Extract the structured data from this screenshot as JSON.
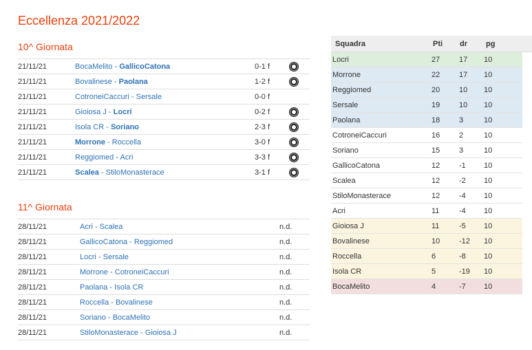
{
  "title": "Eccellenza 2021/2022",
  "rounds": [
    {
      "title": "10^ Giornata",
      "matches": [
        {
          "date": "21/11/21",
          "home": "BocaMelito",
          "away": "GallicoCatona",
          "winner": "away",
          "score": "0-1 f",
          "icon": "soccer-ball-icon"
        },
        {
          "date": "21/11/21",
          "home": "Bovalinese",
          "away": "Paolana",
          "winner": "away",
          "score": "1-2 f",
          "icon": "soccer-ball-icon"
        },
        {
          "date": "21/11/21",
          "home": "CotroneiCaccuri",
          "away": "Sersale",
          "winner": "",
          "score": "0-0 f",
          "icon": ""
        },
        {
          "date": "21/11/21",
          "home": "Gioiosa J",
          "away": "Locri",
          "winner": "away",
          "score": "0-2 f",
          "icon": "soccer-ball-icon"
        },
        {
          "date": "21/11/21",
          "home": "Isola CR",
          "away": "Soriano",
          "winner": "away",
          "score": "2-3 f",
          "icon": "soccer-ball-icon"
        },
        {
          "date": "21/11/21",
          "home": "Morrone",
          "away": "Roccella",
          "winner": "home",
          "score": "3-0 f",
          "icon": "soccer-ball-icon"
        },
        {
          "date": "21/11/21",
          "home": "Reggiomed",
          "away": "Acri",
          "winner": "",
          "score": "3-3 f",
          "icon": "soccer-ball-icon"
        },
        {
          "date": "21/11/21",
          "home": "Scalea",
          "away": "StiloMonasterace",
          "winner": "home",
          "score": "3-1 f",
          "icon": "soccer-ball-icon"
        }
      ]
    },
    {
      "title": "11^ Giornata",
      "matches": [
        {
          "date": "28/11/21",
          "home": "Acri",
          "away": "Scalea",
          "winner": "",
          "score": "n.d.",
          "icon": ""
        },
        {
          "date": "28/11/21",
          "home": "GallicoCatona",
          "away": "Reggiomed",
          "winner": "",
          "score": "n.d.",
          "icon": ""
        },
        {
          "date": "28/11/21",
          "home": "Locri",
          "away": "Sersale",
          "winner": "",
          "score": "n.d.",
          "icon": ""
        },
        {
          "date": "28/11/21",
          "home": "Morrone",
          "away": "CotroneiCaccuri",
          "winner": "",
          "score": "n.d.",
          "icon": ""
        },
        {
          "date": "28/11/21",
          "home": "Paolana",
          "away": "Isola CR",
          "winner": "",
          "score": "n.d.",
          "icon": ""
        },
        {
          "date": "28/11/21",
          "home": "Roccella",
          "away": "Bovalinese",
          "winner": "",
          "score": "n.d.",
          "icon": ""
        },
        {
          "date": "28/11/21",
          "home": "Soriano",
          "away": "BocaMelito",
          "winner": "",
          "score": "n.d.",
          "icon": ""
        },
        {
          "date": "28/11/21",
          "home": "StiloMonasterace",
          "away": "Gioiosa J",
          "winner": "",
          "score": "n.d.",
          "icon": ""
        }
      ]
    }
  ],
  "standings": {
    "headers": {
      "team": "Squadra",
      "points": "Pti",
      "goal_diff": "dr",
      "played": "pg"
    },
    "zone_colors": {
      "green": "#ddeedd",
      "blue": "#dde9f3",
      "yellow": "#fbf5e0",
      "red": "#f2dede"
    },
    "rows": [
      {
        "team": "Locri",
        "points": "27",
        "goal_diff": "17",
        "played": "10",
        "zone": "green"
      },
      {
        "team": "Morrone",
        "points": "22",
        "goal_diff": "17",
        "played": "10",
        "zone": "blue"
      },
      {
        "team": "Reggiomed",
        "points": "20",
        "goal_diff": "10",
        "played": "10",
        "zone": "blue"
      },
      {
        "team": "Sersale",
        "points": "19",
        "goal_diff": "10",
        "played": "10",
        "zone": "blue"
      },
      {
        "team": "Paolana",
        "points": "18",
        "goal_diff": "3",
        "played": "10",
        "zone": "blue"
      },
      {
        "team": "CotroneiCaccuri",
        "points": "16",
        "goal_diff": "2",
        "played": "10",
        "zone": "none"
      },
      {
        "team": "Soriano",
        "points": "15",
        "goal_diff": "3",
        "played": "10",
        "zone": "none"
      },
      {
        "team": "GallicoCatona",
        "points": "12",
        "goal_diff": "-1",
        "played": "10",
        "zone": "none"
      },
      {
        "team": "Scalea",
        "points": "12",
        "goal_diff": "-2",
        "played": "10",
        "zone": "none"
      },
      {
        "team": "StiloMonasterace",
        "points": "12",
        "goal_diff": "-4",
        "played": "10",
        "zone": "none"
      },
      {
        "team": "Acri",
        "points": "11",
        "goal_diff": "-4",
        "played": "10",
        "zone": "none"
      },
      {
        "team": "Gioiosa J",
        "points": "11",
        "goal_diff": "-5",
        "played": "10",
        "zone": "yellow"
      },
      {
        "team": "Bovalinese",
        "points": "10",
        "goal_diff": "-12",
        "played": "10",
        "zone": "yellow"
      },
      {
        "team": "Roccella",
        "points": "6",
        "goal_diff": "-8",
        "played": "10",
        "zone": "yellow"
      },
      {
        "team": "Isola CR",
        "points": "5",
        "goal_diff": "-19",
        "played": "10",
        "zone": "yellow"
      },
      {
        "team": "BocaMelito",
        "points": "4",
        "goal_diff": "-7",
        "played": "10",
        "zone": "red"
      }
    ]
  }
}
